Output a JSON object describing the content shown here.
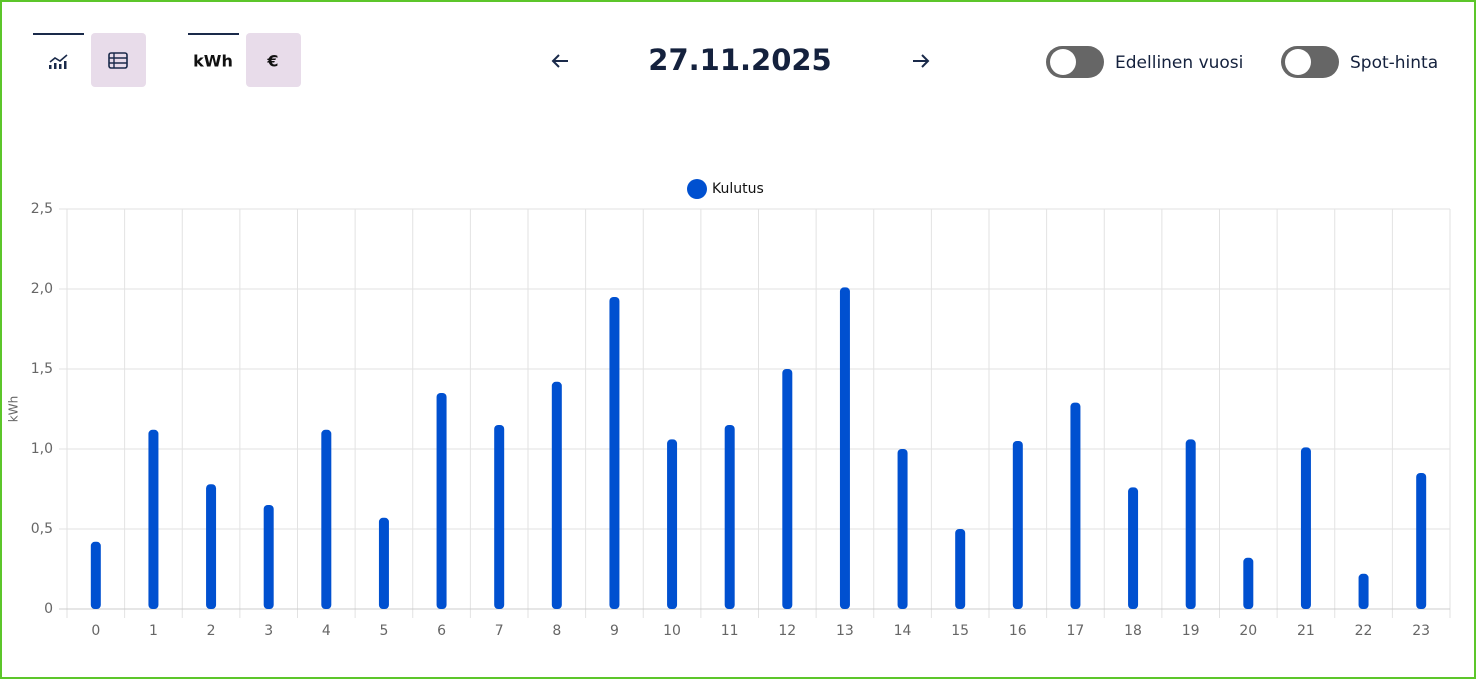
{
  "toolbar": {
    "unit_kwh": "kWh",
    "unit_eur": "€",
    "date": "27.11.2025",
    "toggles": [
      "Edellinen vuosi",
      "Spot-hinta"
    ]
  },
  "chart_data": {
    "type": "bar",
    "y_label": "kWh",
    "categories": [
      "0",
      "1",
      "2",
      "3",
      "4",
      "5",
      "6",
      "7",
      "8",
      "9",
      "10",
      "11",
      "12",
      "13",
      "14",
      "15",
      "16",
      "17",
      "18",
      "19",
      "20",
      "21",
      "22",
      "23"
    ],
    "series": [
      {
        "name": "Kulutus",
        "color": "#0050d0",
        "values": [
          0.42,
          1.12,
          0.78,
          0.65,
          1.12,
          0.57,
          1.35,
          1.15,
          1.42,
          1.95,
          1.06,
          1.15,
          1.5,
          2.01,
          1.0,
          0.5,
          1.05,
          1.29,
          0.76,
          1.06,
          0.32,
          1.01,
          0.22,
          0.85
        ]
      }
    ],
    "ylim": [
      0,
      2.5
    ],
    "yticks": [
      0,
      {
        "value": 0.5,
        "label": "0,5"
      },
      {
        "value": 1,
        "label": "1,0"
      },
      {
        "value": 1.5,
        "label": "1,5"
      },
      {
        "value": 2,
        "label": "2,0"
      },
      {
        "value": 2.5,
        "label": "2,5"
      }
    ],
    "grid": true
  }
}
